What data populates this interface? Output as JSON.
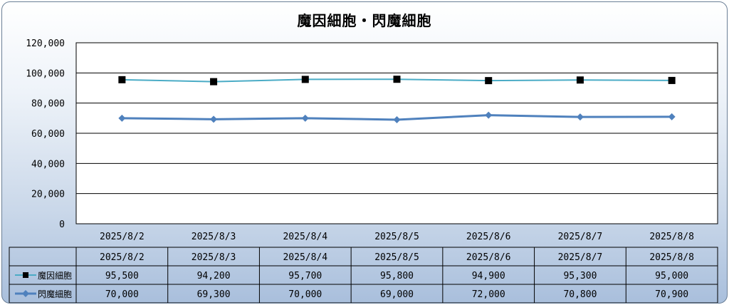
{
  "chart_data": {
    "type": "line",
    "title": "魔因細胞・閃魔細胞",
    "categories": [
      "2025/8/2",
      "2025/8/3",
      "2025/8/4",
      "2025/8/5",
      "2025/8/6",
      "2025/8/7",
      "2025/8/8"
    ],
    "ylim": [
      0,
      120000
    ],
    "yticks": [
      "0",
      "20,000",
      "40,000",
      "60,000",
      "80,000",
      "100,000",
      "120,000"
    ],
    "grid": true,
    "legend": "data-table",
    "series": [
      {
        "name": "魔因細胞",
        "marker": "square",
        "color": "#4bacc6",
        "marker_color": "#000000",
        "values": [
          95500,
          94200,
          95700,
          95800,
          94900,
          95300,
          95000
        ],
        "labels": [
          "95,500",
          "94,200",
          "95,700",
          "95,800",
          "94,900",
          "95,300",
          "95,000"
        ]
      },
      {
        "name": "閃魔細胞",
        "marker": "diamond",
        "color": "#4f81bd",
        "marker_color": "#4f81bd",
        "values": [
          70000,
          69300,
          70000,
          69000,
          72000,
          70800,
          70900
        ],
        "labels": [
          "70,000",
          "69,300",
          "70,000",
          "69,000",
          "72,000",
          "70,800",
          "70,900"
        ]
      }
    ]
  }
}
